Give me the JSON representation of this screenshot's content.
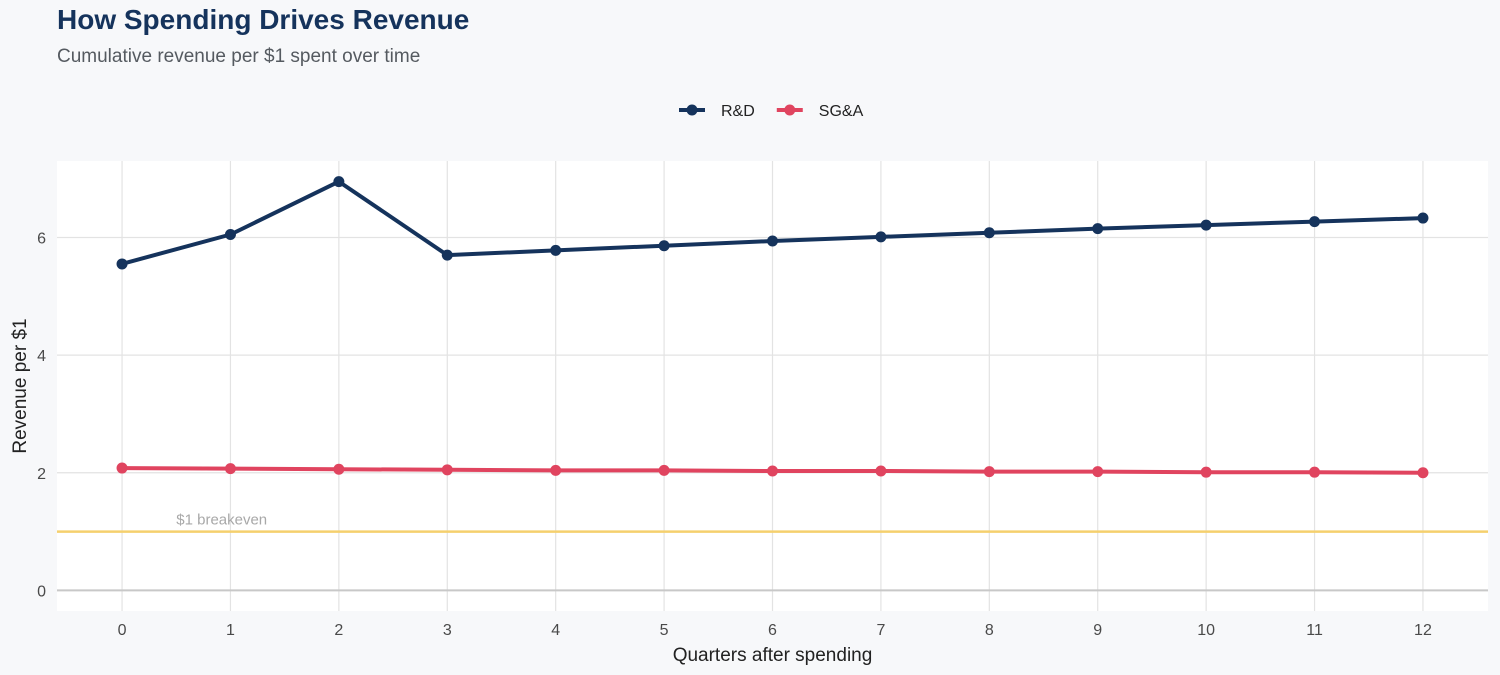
{
  "title": "How Spending Drives Revenue",
  "subtitle": "Cumulative revenue per $1 spent over time",
  "chart_data": {
    "type": "line",
    "title": "How Spending Drives Revenue",
    "subtitle": "Cumulative revenue per $1 spent over time",
    "xlabel": "Quarters after spending",
    "ylabel": "Revenue per $1",
    "x": [
      0,
      1,
      2,
      3,
      4,
      5,
      6,
      7,
      8,
      9,
      10,
      11,
      12
    ],
    "xlim": [
      -0.6,
      12.6
    ],
    "ylim": [
      -0.35,
      7.3
    ],
    "yticks": [
      0,
      2,
      4,
      6
    ],
    "grid": true,
    "legend_position": "top-center",
    "series": [
      {
        "name": "R&D",
        "color": "#15335c",
        "values": [
          5.55,
          6.05,
          6.95,
          5.7,
          5.78,
          5.86,
          5.94,
          6.01,
          6.08,
          6.15,
          6.21,
          6.27,
          6.33
        ]
      },
      {
        "name": "SG&A",
        "color": "#e0445f",
        "values": [
          2.08,
          2.07,
          2.06,
          2.05,
          2.04,
          2.04,
          2.03,
          2.03,
          2.02,
          2.02,
          2.01,
          2.01,
          2.0
        ]
      }
    ],
    "reference_line": {
      "y": 1,
      "label": "$1 breakeven",
      "color": "#f5d06e"
    }
  }
}
